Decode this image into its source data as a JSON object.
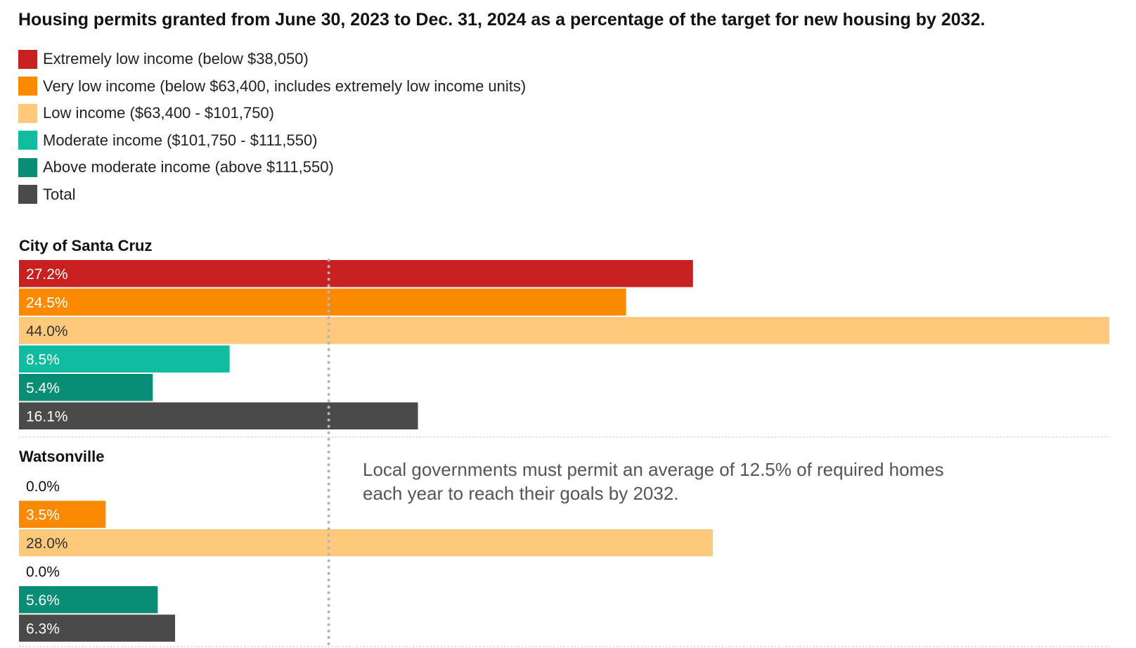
{
  "title": "Housing permits granted from June 30, 2023 to Dec. 31, 2024 as a percentage of the target for new housing by 2032.",
  "legend": [
    {
      "label": "Extremely low income (below $38,050)",
      "color": "#c8201f"
    },
    {
      "label": "Very low income (below $63,400, includes extremely low income units)",
      "color": "#fb8a00"
    },
    {
      "label": "Low income ($63,400 - $101,750)",
      "color": "#fec97a"
    },
    {
      "label": "Moderate income ($101,750 - $111,550)",
      "color": "#10bc9f"
    },
    {
      "label": "Above moderate income (above $111,550)",
      "color": "#078e75"
    },
    {
      "label": "Total",
      "color": "#4a4a4a"
    }
  ],
  "annotation": {
    "lines": [
      "Local governments must permit an average of 12.5% of required homes",
      "each year to reach their goals by 2032."
    ],
    "reference_value": 12.5
  },
  "chart_data": {
    "type": "bar",
    "orientation": "horizontal",
    "title": "Housing permits granted from June 30, 2023 to Dec. 31, 2024 as a percentage of the target for new housing by 2032.",
    "xlim": [
      0,
      44
    ],
    "categories": [
      "Extremely low income (below $38,050)",
      "Very low income (below $63,400, includes extremely low income units)",
      "Low income ($63,400 - $101,750)",
      "Moderate income ($101,750 - $111,550)",
      "Above moderate income (above $111,550)",
      "Total"
    ],
    "colors": [
      "#c8201f",
      "#fb8a00",
      "#fec97a",
      "#10bc9f",
      "#078e75",
      "#4a4a4a"
    ],
    "label_colors": [
      "#ffffff",
      "#ffffff",
      "#333333",
      "#ffffff",
      "#ffffff",
      "#ffffff"
    ],
    "groups": [
      {
        "name": "City of Santa Cruz",
        "values": [
          27.2,
          24.5,
          44.0,
          8.5,
          5.4,
          16.1
        ],
        "labels": [
          "27.2%",
          "24.5%",
          "44.0%",
          "8.5%",
          "5.4%",
          "16.1%"
        ]
      },
      {
        "name": "Watsonville",
        "values": [
          0.0,
          3.5,
          28.0,
          0.0,
          5.6,
          6.3
        ],
        "labels": [
          "0.0%",
          "3.5%",
          "28.0%",
          "0.0%",
          "5.6%",
          "6.3%"
        ]
      }
    ]
  }
}
